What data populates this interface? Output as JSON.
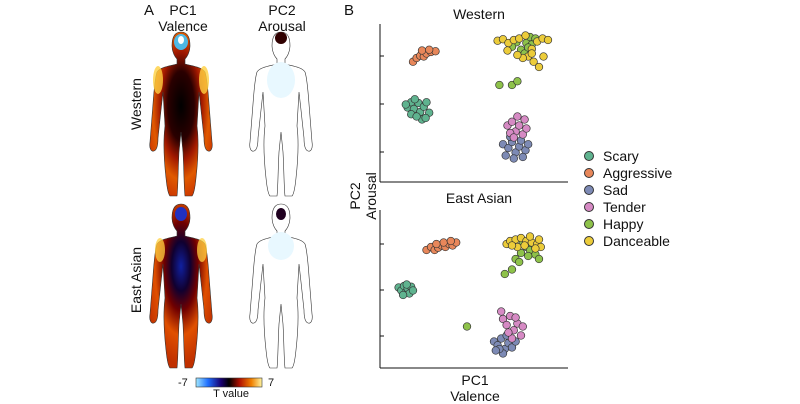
{
  "panels": {
    "a_label": "A",
    "b_label": "B"
  },
  "body_maps": {
    "col_pc1_line1": "PC1",
    "col_pc1_line2": "Valence",
    "col_pc2_line1": "PC2",
    "col_pc2_line2": "Arousal",
    "row_western": "Western",
    "row_east_asian": "East Asian"
  },
  "colorbar": {
    "min_label": "-7",
    "max_label": "7",
    "title": "T value",
    "min_value": -7,
    "max_value": 7
  },
  "colors": {
    "Scary": "#5fb38f",
    "Aggressive": "#e8875a",
    "Sad": "#7d8ab5",
    "Tender": "#d68ac4",
    "Happy": "#8ec24a",
    "Danceable": "#eccc3a"
  },
  "chart_data": [
    {
      "type": "scatter",
      "title": "Western",
      "xlabel": "PC1 Valence",
      "ylabel": "PC2 Arousal",
      "xlim": [
        -1,
        1
      ],
      "ylim": [
        -1,
        1
      ],
      "series": [
        {
          "name": "Scary",
          "points": [
            [
              -0.76,
              -0.06
            ],
            [
              -0.72,
              0.01
            ],
            [
              -0.69,
              -0.08
            ],
            [
              -0.64,
              0.0
            ],
            [
              -0.62,
              -0.12
            ],
            [
              -0.58,
              -0.05
            ],
            [
              -0.72,
              -0.15
            ],
            [
              -0.55,
              0.01
            ],
            [
              -0.6,
              -0.22
            ],
            [
              -0.66,
              -0.18
            ],
            [
              -0.52,
              -0.13
            ],
            [
              -0.78,
              -0.02
            ],
            [
              -0.68,
              0.05
            ],
            [
              -0.56,
              -0.2
            ]
          ]
        },
        {
          "name": "Aggressive",
          "points": [
            [
              -0.7,
              0.55
            ],
            [
              -0.66,
              0.6
            ],
            [
              -0.62,
              0.63
            ],
            [
              -0.58,
              0.62
            ],
            [
              -0.55,
              0.66
            ],
            [
              -0.5,
              0.68
            ],
            [
              -0.45,
              0.69
            ],
            [
              -0.6,
              0.7
            ],
            [
              -0.52,
              0.71
            ]
          ]
        },
        {
          "name": "Sad",
          "points": [
            [
              0.3,
              -0.55
            ],
            [
              0.36,
              -0.6
            ],
            [
              0.4,
              -0.52
            ],
            [
              0.44,
              -0.66
            ],
            [
              0.48,
              -0.58
            ],
            [
              0.5,
              -0.5
            ],
            [
              0.55,
              -0.63
            ],
            [
              0.33,
              -0.7
            ],
            [
              0.42,
              -0.74
            ],
            [
              0.52,
              -0.72
            ],
            [
              0.58,
              -0.55
            ],
            [
              0.38,
              -0.45
            ]
          ]
        },
        {
          "name": "Tender",
          "points": [
            [
              0.35,
              -0.3
            ],
            [
              0.4,
              -0.25
            ],
            [
              0.44,
              -0.38
            ],
            [
              0.48,
              -0.3
            ],
            [
              0.52,
              -0.42
            ],
            [
              0.56,
              -0.34
            ],
            [
              0.46,
              -0.18
            ],
            [
              0.38,
              -0.4
            ],
            [
              0.54,
              -0.22
            ],
            [
              0.42,
              -0.46
            ]
          ]
        },
        {
          "name": "Happy",
          "points": [
            [
              0.26,
              0.24
            ],
            [
              0.4,
              0.24
            ],
            [
              0.46,
              0.29
            ],
            [
              0.5,
              0.71
            ],
            [
              0.54,
              0.66
            ],
            [
              0.56,
              0.8
            ],
            [
              0.6,
              0.88
            ],
            [
              0.62,
              0.78
            ],
            [
              0.66,
              0.86
            ],
            [
              0.58,
              0.74
            ],
            [
              0.45,
              0.81
            ],
            [
              0.4,
              0.75
            ]
          ]
        },
        {
          "name": "Danceable",
          "points": [
            [
              0.24,
              0.83
            ],
            [
              0.3,
              0.85
            ],
            [
              0.36,
              0.8
            ],
            [
              0.42,
              0.84
            ],
            [
              0.48,
              0.86
            ],
            [
              0.55,
              0.9
            ],
            [
              0.62,
              0.72
            ],
            [
              0.68,
              0.82
            ],
            [
              0.74,
              0.86
            ],
            [
              0.8,
              0.84
            ],
            [
              0.58,
              0.62
            ],
            [
              0.64,
              0.55
            ],
            [
              0.7,
              0.48
            ],
            [
              0.52,
              0.6
            ],
            [
              0.46,
              0.64
            ],
            [
              0.35,
              0.7
            ],
            [
              0.75,
              0.62
            ],
            [
              0.62,
              0.66
            ]
          ]
        }
      ]
    },
    {
      "type": "scatter",
      "title": "East Asian",
      "xlabel": "PC1 Valence",
      "ylabel": "PC2 Arousal",
      "xlim": [
        -1,
        1
      ],
      "ylim": [
        -1,
        1
      ],
      "series": [
        {
          "name": "Scary",
          "points": [
            [
              -0.86,
              0.02
            ],
            [
              -0.83,
              -0.02
            ],
            [
              -0.8,
              0.04
            ],
            [
              -0.78,
              -0.05
            ],
            [
              -0.76,
              0.01
            ],
            [
              -0.74,
              -0.06
            ],
            [
              -0.72,
              0.03
            ],
            [
              -0.81,
              -0.08
            ],
            [
              -0.77,
              0.06
            ],
            [
              -0.7,
              -0.02
            ]
          ]
        },
        {
          "name": "Aggressive",
          "points": [
            [
              -0.55,
              0.52
            ],
            [
              -0.5,
              0.56
            ],
            [
              -0.46,
              0.52
            ],
            [
              -0.42,
              0.55
            ],
            [
              -0.38,
              0.58
            ],
            [
              -0.34,
              0.56
            ],
            [
              -0.3,
              0.6
            ],
            [
              -0.26,
              0.58
            ],
            [
              -0.22,
              0.62
            ],
            [
              -0.36,
              0.62
            ],
            [
              -0.44,
              0.6
            ],
            [
              -0.28,
              0.64
            ]
          ]
        },
        {
          "name": "Sad",
          "points": [
            [
              0.2,
              -0.7
            ],
            [
              0.24,
              -0.75
            ],
            [
              0.28,
              -0.66
            ],
            [
              0.32,
              -0.8
            ],
            [
              0.36,
              -0.72
            ],
            [
              0.4,
              -0.78
            ],
            [
              0.3,
              -0.86
            ],
            [
              0.26,
              -0.8
            ],
            [
              0.44,
              -0.7
            ],
            [
              0.34,
              -0.62
            ],
            [
              0.22,
              -0.82
            ]
          ]
        },
        {
          "name": "Tender",
          "points": [
            [
              0.3,
              -0.4
            ],
            [
              0.34,
              -0.48
            ],
            [
              0.38,
              -0.36
            ],
            [
              0.42,
              -0.55
            ],
            [
              0.46,
              -0.46
            ],
            [
              0.5,
              -0.62
            ],
            [
              0.4,
              -0.66
            ],
            [
              0.36,
              -0.58
            ],
            [
              0.52,
              -0.5
            ],
            [
              0.28,
              -0.3
            ],
            [
              0.44,
              -0.38
            ]
          ]
        },
        {
          "name": "Happy",
          "points": [
            [
              0.32,
              0.2
            ],
            [
              0.4,
              0.26
            ],
            [
              0.44,
              0.4
            ],
            [
              0.5,
              0.48
            ],
            [
              0.56,
              0.56
            ],
            [
              0.6,
              0.52
            ],
            [
              0.64,
              0.6
            ],
            [
              0.66,
              0.46
            ],
            [
              0.7,
              0.4
            ],
            [
              0.58,
              0.44
            ],
            [
              0.52,
              0.62
            ],
            [
              0.48,
              0.36
            ],
            [
              -0.1,
              -0.5
            ]
          ]
        },
        {
          "name": "Danceable",
          "points": [
            [
              0.34,
              0.6
            ],
            [
              0.38,
              0.64
            ],
            [
              0.44,
              0.66
            ],
            [
              0.5,
              0.68
            ],
            [
              0.56,
              0.64
            ],
            [
              0.62,
              0.62
            ],
            [
              0.68,
              0.6
            ],
            [
              0.72,
              0.56
            ],
            [
              0.46,
              0.56
            ],
            [
              0.54,
              0.58
            ],
            [
              0.6,
              0.7
            ],
            [
              0.66,
              0.54
            ],
            [
              0.4,
              0.58
            ],
            [
              0.7,
              0.66
            ]
          ]
        }
      ]
    }
  ],
  "legend": [
    "Scary",
    "Aggressive",
    "Sad",
    "Tender",
    "Happy",
    "Danceable"
  ]
}
